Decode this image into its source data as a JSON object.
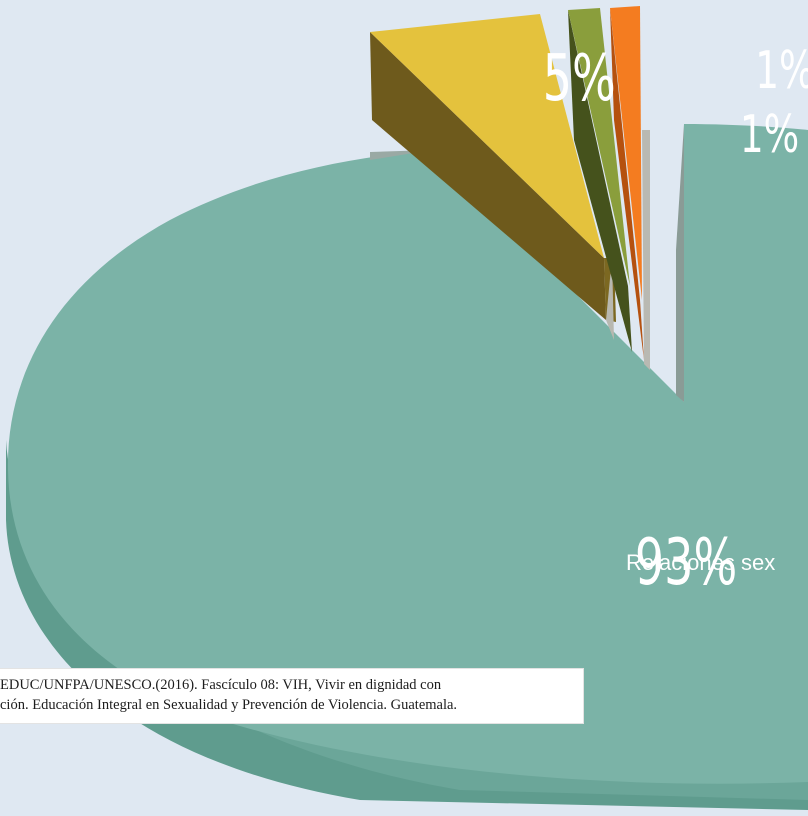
{
  "chart_data": {
    "type": "pie",
    "title": "",
    "slices": [
      {
        "value_label": "93%",
        "value": 93,
        "label": "Relaciones sex",
        "color": "#7bb3a7"
      },
      {
        "value_label": "5%",
        "value": 5,
        "label": "",
        "color": "#e4c23d"
      },
      {
        "value_label": "1%",
        "value": 1,
        "label": "",
        "color": "#8a9e3c"
      },
      {
        "value_label": "1%",
        "value": 1,
        "label": "",
        "color": "#f47c20"
      }
    ]
  },
  "source": {
    "line1": "EDUC/UNFPA/UNESCO.(2016). Fascículo 08: VIH, Vivir en dignidad con",
    "line2": "ción. Educación Integral en Sexualidad y Prevención de Violencia. Guatemala."
  }
}
